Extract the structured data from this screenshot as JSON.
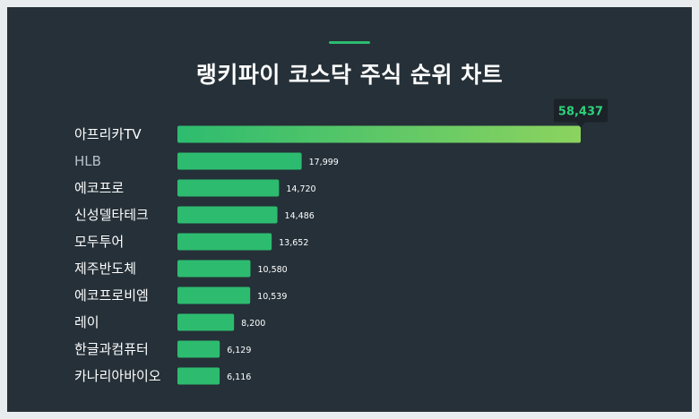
{
  "title": "랭키파이 코스닥 주식 순위 차트",
  "colors": {
    "background": "#253038",
    "bar": "#2dbc6f",
    "bar_top_start": "#2dbc6f",
    "bar_top_end": "#8cd35f",
    "callout_bg": "#1b2228",
    "callout_text": "#2dd17a",
    "accent": "#2dbc6f"
  },
  "chart_data": {
    "type": "bar",
    "orientation": "horizontal",
    "title": "랭키파이 코스닥 주식 순위 차트",
    "categories": [
      "아프리카TV",
      "HLB",
      "에코프로",
      "신성델타테크",
      "모두투어",
      "제주반도체",
      "에코프로비엠",
      "레이",
      "한글과컴퓨터",
      "카나리아바이오"
    ],
    "values": [
      58437,
      17999,
      14720,
      14486,
      13652,
      10580,
      10539,
      8200,
      6129,
      6116
    ],
    "value_labels": [
      "58,437",
      "17,999",
      "14,720",
      "14,486",
      "13,652",
      "10,580",
      "10,539",
      "8,200",
      "6,129",
      "6,116"
    ],
    "xlim": [
      0,
      58437
    ],
    "grid": false,
    "legend": "none",
    "highlight": "top value shown in callout"
  }
}
